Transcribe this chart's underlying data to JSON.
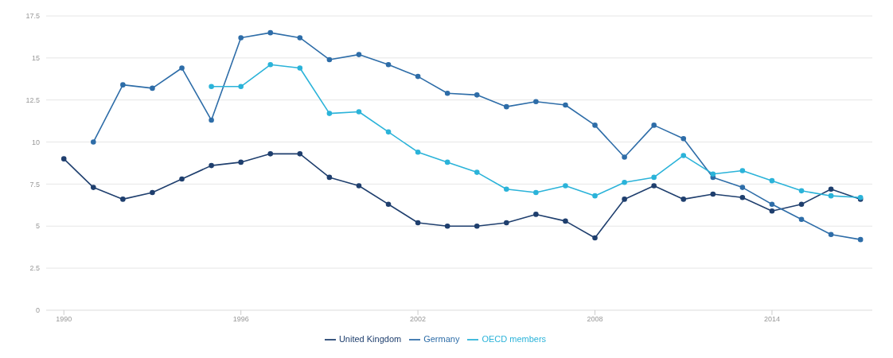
{
  "chart_data": {
    "type": "line",
    "x": [
      1990,
      1991,
      1992,
      1993,
      1994,
      1995,
      1996,
      1997,
      1998,
      1999,
      2000,
      2001,
      2002,
      2003,
      2004,
      2005,
      2006,
      2007,
      2008,
      2009,
      2010,
      2011,
      2012,
      2013,
      2014,
      2015,
      2016,
      2017
    ],
    "series": [
      {
        "name": "United Kingdom",
        "color": "#1f3f6e",
        "values": [
          9.0,
          7.3,
          6.6,
          7.0,
          7.8,
          8.6,
          8.8,
          9.3,
          9.3,
          7.9,
          7.4,
          6.3,
          5.2,
          5.0,
          5.0,
          5.2,
          5.7,
          5.3,
          4.3,
          6.6,
          7.4,
          6.6,
          6.9,
          6.7,
          5.9,
          6.3,
          7.2,
          6.6
        ]
      },
      {
        "name": "Germany",
        "color": "#2e6da8",
        "values": [
          null,
          10.0,
          13.4,
          13.2,
          14.4,
          11.3,
          16.2,
          16.5,
          16.2,
          14.9,
          15.2,
          14.6,
          13.9,
          12.9,
          12.8,
          12.1,
          12.4,
          12.2,
          11.0,
          9.1,
          11.0,
          10.2,
          7.9,
          7.3,
          6.3,
          5.4,
          4.5,
          4.2
        ]
      },
      {
        "name": "OECD members",
        "color": "#2bb3d9",
        "values": [
          null,
          null,
          null,
          null,
          null,
          13.3,
          13.3,
          14.6,
          14.4,
          11.7,
          11.8,
          10.6,
          9.4,
          8.8,
          8.2,
          7.2,
          7.0,
          7.4,
          6.8,
          7.6,
          7.9,
          9.2,
          8.1,
          8.3,
          7.7,
          7.1,
          6.8,
          6.7
        ]
      }
    ],
    "xlim": [
      1989.4,
      2017.4
    ],
    "xticks": [
      1990,
      1996,
      2002,
      2008,
      2014
    ],
    "ylim": [
      0,
      17.5
    ],
    "yticks": [
      0,
      2.5,
      5,
      7.5,
      10,
      12.5,
      15,
      17.5
    ],
    "grid": "y",
    "legend": "bottom",
    "marker": "circle",
    "line_style": "solid"
  }
}
